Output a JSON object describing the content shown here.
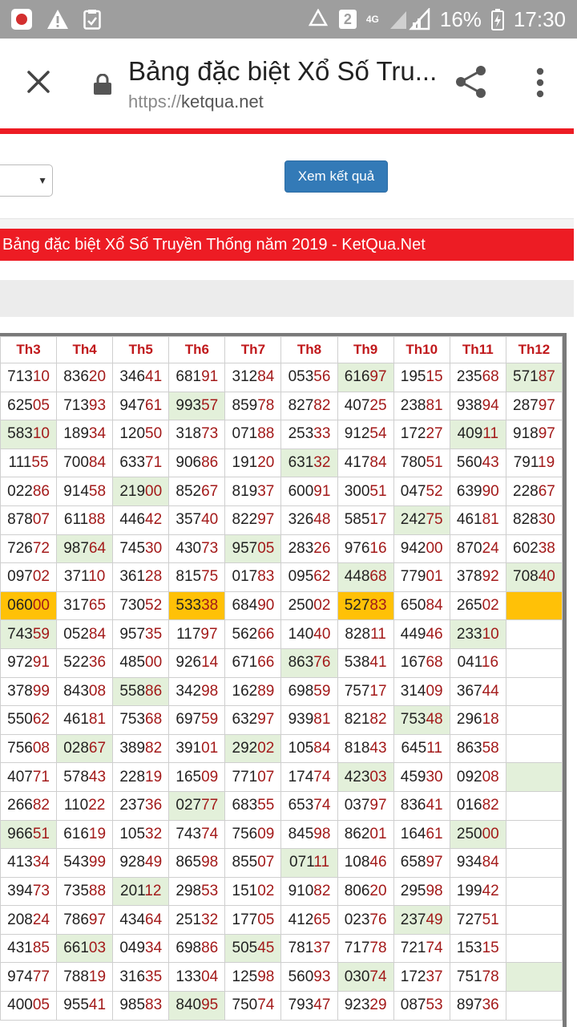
{
  "status_bar": {
    "sim_badge": "2",
    "network": "4G",
    "battery": "16%",
    "time": "17:30"
  },
  "browser": {
    "title": "Bảng đặc biệt Xổ Số Tru...",
    "url_scheme": "https://",
    "url_host": "ketqua.net"
  },
  "form": {
    "submit_label": "Xem kết quả"
  },
  "banner": "Bảng đặc biệt Xổ Số Truyền Thống năm 2019 - KetQua.Net",
  "table": {
    "months": [
      "Th3",
      "Th4",
      "Th5",
      "Th6",
      "Th7",
      "Th8",
      "Th9",
      "Th10",
      "Th11",
      "Th12"
    ],
    "rows": [
      [
        {
          "v": "71310"
        },
        {
          "v": "83620"
        },
        {
          "v": "34641"
        },
        {
          "v": "68191"
        },
        {
          "v": "31284"
        },
        {
          "v": "05356"
        },
        {
          "v": "61697",
          "h": "g"
        },
        {
          "v": "19515"
        },
        {
          "v": "23568"
        },
        {
          "v": "57187",
          "h": "g"
        }
      ],
      [
        {
          "v": "62505"
        },
        {
          "v": "71393"
        },
        {
          "v": "94761"
        },
        {
          "v": "99357",
          "h": "g"
        },
        {
          "v": "85978"
        },
        {
          "v": "82782"
        },
        {
          "v": "40725"
        },
        {
          "v": "23881"
        },
        {
          "v": "93894"
        },
        {
          "v": "28797"
        }
      ],
      [
        {
          "v": "58310",
          "h": "g"
        },
        {
          "v": "18934"
        },
        {
          "v": "12050"
        },
        {
          "v": "31873"
        },
        {
          "v": "07188"
        },
        {
          "v": "25333"
        },
        {
          "v": "91254"
        },
        {
          "v": "17227"
        },
        {
          "v": "40911",
          "h": "g"
        },
        {
          "v": "91897"
        }
      ],
      [
        {
          "v": "11155"
        },
        {
          "v": "70084"
        },
        {
          "v": "63371"
        },
        {
          "v": "90686"
        },
        {
          "v": "19120"
        },
        {
          "v": "63132",
          "h": "g"
        },
        {
          "v": "41784"
        },
        {
          "v": "78051"
        },
        {
          "v": "56043"
        },
        {
          "v": "79119"
        }
      ],
      [
        {
          "v": "02286"
        },
        {
          "v": "91458"
        },
        {
          "v": "21900",
          "h": "g"
        },
        {
          "v": "85267"
        },
        {
          "v": "81937"
        },
        {
          "v": "60091"
        },
        {
          "v": "30051"
        },
        {
          "v": "04752"
        },
        {
          "v": "63990"
        },
        {
          "v": "22867"
        }
      ],
      [
        {
          "v": "87807"
        },
        {
          "v": "61188"
        },
        {
          "v": "44642"
        },
        {
          "v": "35740"
        },
        {
          "v": "82297"
        },
        {
          "v": "32648"
        },
        {
          "v": "58517"
        },
        {
          "v": "24275",
          "h": "g"
        },
        {
          "v": "46181"
        },
        {
          "v": "82830"
        }
      ],
      [
        {
          "v": "72672"
        },
        {
          "v": "98764",
          "h": "g"
        },
        {
          "v": "74530"
        },
        {
          "v": "43073"
        },
        {
          "v": "95705",
          "h": "g"
        },
        {
          "v": "28326"
        },
        {
          "v": "97616"
        },
        {
          "v": "94200"
        },
        {
          "v": "87024"
        },
        {
          "v": "60238"
        }
      ],
      [
        {
          "v": "09702"
        },
        {
          "v": "37110"
        },
        {
          "v": "36128"
        },
        {
          "v": "81575"
        },
        {
          "v": "01783"
        },
        {
          "v": "09562"
        },
        {
          "v": "44868",
          "h": "g"
        },
        {
          "v": "77901"
        },
        {
          "v": "37892"
        },
        {
          "v": "70840",
          "h": "g"
        }
      ],
      [
        {
          "v": "06000",
          "h": "o"
        },
        {
          "v": "31765"
        },
        {
          "v": "73052"
        },
        {
          "v": "53338",
          "h": "o"
        },
        {
          "v": "68490"
        },
        {
          "v": "25002"
        },
        {
          "v": "52783",
          "h": "o"
        },
        {
          "v": "65084"
        },
        {
          "v": "26502"
        },
        {
          "v": "",
          "h": "o"
        }
      ],
      [
        {
          "v": "74359",
          "h": "g"
        },
        {
          "v": "05284"
        },
        {
          "v": "95735"
        },
        {
          "v": "11797"
        },
        {
          "v": "56266"
        },
        {
          "v": "14040"
        },
        {
          "v": "82811"
        },
        {
          "v": "44946"
        },
        {
          "v": "23310",
          "h": "g"
        },
        {
          "v": ""
        }
      ],
      [
        {
          "v": "97291"
        },
        {
          "v": "52236"
        },
        {
          "v": "48500"
        },
        {
          "v": "92614"
        },
        {
          "v": "67166"
        },
        {
          "v": "86376",
          "h": "g"
        },
        {
          "v": "53841"
        },
        {
          "v": "16768"
        },
        {
          "v": "04116"
        },
        {
          "v": ""
        }
      ],
      [
        {
          "v": "37899"
        },
        {
          "v": "84308"
        },
        {
          "v": "55886",
          "h": "g"
        },
        {
          "v": "34298"
        },
        {
          "v": "16289"
        },
        {
          "v": "69859"
        },
        {
          "v": "75717"
        },
        {
          "v": "31409"
        },
        {
          "v": "36744"
        },
        {
          "v": ""
        }
      ],
      [
        {
          "v": "55062"
        },
        {
          "v": "46181"
        },
        {
          "v": "75368"
        },
        {
          "v": "69759"
        },
        {
          "v": "63297"
        },
        {
          "v": "93981"
        },
        {
          "v": "82182"
        },
        {
          "v": "75348",
          "h": "g"
        },
        {
          "v": "29618"
        },
        {
          "v": ""
        }
      ],
      [
        {
          "v": "75608"
        },
        {
          "v": "02867",
          "h": "g"
        },
        {
          "v": "38982"
        },
        {
          "v": "39101"
        },
        {
          "v": "29202",
          "h": "g"
        },
        {
          "v": "10584"
        },
        {
          "v": "81843"
        },
        {
          "v": "64511"
        },
        {
          "v": "86358"
        },
        {
          "v": ""
        }
      ],
      [
        {
          "v": "40771"
        },
        {
          "v": "57843"
        },
        {
          "v": "22819"
        },
        {
          "v": "16509"
        },
        {
          "v": "77107"
        },
        {
          "v": "17474"
        },
        {
          "v": "42303",
          "h": "g"
        },
        {
          "v": "45930"
        },
        {
          "v": "09208"
        },
        {
          "v": "",
          "h": "g"
        }
      ],
      [
        {
          "v": "26682"
        },
        {
          "v": "11022"
        },
        {
          "v": "23736"
        },
        {
          "v": "02777",
          "h": "g"
        },
        {
          "v": "68355"
        },
        {
          "v": "65374"
        },
        {
          "v": "03797"
        },
        {
          "v": "83641"
        },
        {
          "v": "01682"
        },
        {
          "v": ""
        }
      ],
      [
        {
          "v": "96651",
          "h": "g"
        },
        {
          "v": "61619"
        },
        {
          "v": "10532"
        },
        {
          "v": "74374"
        },
        {
          "v": "75609"
        },
        {
          "v": "84598"
        },
        {
          "v": "86201"
        },
        {
          "v": "16461"
        },
        {
          "v": "25000",
          "h": "g"
        },
        {
          "v": ""
        }
      ],
      [
        {
          "v": "41334"
        },
        {
          "v": "54399"
        },
        {
          "v": "92849"
        },
        {
          "v": "86598"
        },
        {
          "v": "85507"
        },
        {
          "v": "07111",
          "h": "g"
        },
        {
          "v": "10846"
        },
        {
          "v": "65897"
        },
        {
          "v": "93484"
        },
        {
          "v": ""
        }
      ],
      [
        {
          "v": "39473"
        },
        {
          "v": "73588"
        },
        {
          "v": "20112",
          "h": "g"
        },
        {
          "v": "29853"
        },
        {
          "v": "15102"
        },
        {
          "v": "91082"
        },
        {
          "v": "80620"
        },
        {
          "v": "29598"
        },
        {
          "v": "19942"
        },
        {
          "v": ""
        }
      ],
      [
        {
          "v": "20824"
        },
        {
          "v": "78697"
        },
        {
          "v": "43464"
        },
        {
          "v": "25132"
        },
        {
          "v": "17705"
        },
        {
          "v": "41265"
        },
        {
          "v": "02376"
        },
        {
          "v": "23749",
          "h": "g"
        },
        {
          "v": "72751"
        },
        {
          "v": ""
        }
      ],
      [
        {
          "v": "43185"
        },
        {
          "v": "66103",
          "h": "g"
        },
        {
          "v": "04934"
        },
        {
          "v": "69886"
        },
        {
          "v": "50545",
          "h": "g"
        },
        {
          "v": "78137"
        },
        {
          "v": "71778"
        },
        {
          "v": "72174"
        },
        {
          "v": "15315"
        },
        {
          "v": ""
        }
      ],
      [
        {
          "v": "97477"
        },
        {
          "v": "78819"
        },
        {
          "v": "31635"
        },
        {
          "v": "13304"
        },
        {
          "v": "12598"
        },
        {
          "v": "56093"
        },
        {
          "v": "03074",
          "h": "g"
        },
        {
          "v": "17237"
        },
        {
          "v": "75178"
        },
        {
          "v": "",
          "h": "g"
        }
      ],
      [
        {
          "v": "40005"
        },
        {
          "v": "95541"
        },
        {
          "v": "98583"
        },
        {
          "v": "84095",
          "h": "g"
        },
        {
          "v": "75074"
        },
        {
          "v": "79347"
        },
        {
          "v": "92329"
        },
        {
          "v": "08753"
        },
        {
          "v": "89736"
        },
        {
          "v": ""
        }
      ]
    ]
  },
  "colors": {
    "brand_red": "#ed1c24",
    "button_blue": "#337ab7",
    "highlight_green": "#e3f0da",
    "highlight_orange": "#ffc107"
  }
}
